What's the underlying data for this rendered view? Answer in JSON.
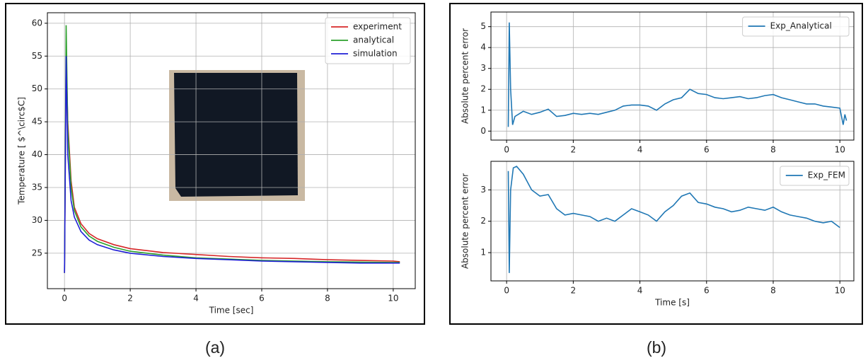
{
  "chart_data": [
    {
      "type": "line",
      "xlabel": "Time [sec]",
      "ylabel": "Temperature [ $^\\circ$C]",
      "x": [
        0,
        0.05,
        0.1,
        0.2,
        0.3,
        0.5,
        0.75,
        1,
        1.5,
        2,
        3,
        4,
        5,
        6,
        7,
        8,
        9,
        10,
        10.2
      ],
      "series": [
        {
          "name": "experiment",
          "color": "#d62728",
          "values": [
            22,
            55,
            45,
            36,
            32,
            29.5,
            28,
            27.2,
            26.3,
            25.7,
            25.1,
            24.8,
            24.5,
            24.3,
            24.2,
            24.0,
            23.9,
            23.8,
            23.7
          ]
        },
        {
          "name": "analytical",
          "color": "#2ca02c",
          "values": [
            22,
            59.7,
            44,
            35,
            31.5,
            29,
            27.6,
            26.8,
            25.9,
            25.3,
            24.7,
            24.3,
            24.1,
            23.9,
            23.8,
            23.7,
            23.65,
            23.6,
            23.6
          ]
        },
        {
          "name": "simulation",
          "color": "#1f1fd6",
          "values": [
            22,
            55,
            40,
            33,
            30.5,
            28.3,
            27,
            26.3,
            25.5,
            25.0,
            24.5,
            24.2,
            24.0,
            23.8,
            23.7,
            23.6,
            23.5,
            23.5,
            23.5
          ]
        }
      ],
      "xlim": [
        -0.52,
        10.67
      ],
      "xticks": [
        0,
        2,
        4,
        6,
        8,
        10
      ],
      "ylim": [
        19.6,
        61.6
      ],
      "yticks": [
        25,
        30,
        35,
        40,
        45,
        50,
        55,
        60
      ],
      "grid": true,
      "legend": "upper right",
      "caption": "(a)"
    },
    {
      "type": "line",
      "ylabel": "Absolute percent error",
      "x": [
        0.05,
        0.08,
        0.12,
        0.18,
        0.25,
        0.5,
        0.75,
        1.0,
        1.25,
        1.5,
        1.75,
        2.0,
        2.25,
        2.5,
        2.75,
        3.0,
        3.25,
        3.5,
        3.75,
        4.0,
        4.25,
        4.5,
        4.75,
        5.0,
        5.25,
        5.5,
        5.75,
        6.0,
        6.25,
        6.5,
        6.75,
        7.0,
        7.25,
        7.5,
        7.75,
        8.0,
        8.25,
        8.5,
        8.75,
        9.0,
        9.25,
        9.5,
        9.75,
        10.0,
        10.1,
        10.15,
        10.2
      ],
      "series": [
        {
          "name": "Exp_Analytical",
          "color": "#1f77b4",
          "values": [
            0.2,
            5.2,
            2.0,
            0.3,
            0.7,
            0.95,
            0.8,
            0.9,
            1.05,
            0.7,
            0.75,
            0.85,
            0.8,
            0.85,
            0.8,
            0.9,
            1.0,
            1.2,
            1.25,
            1.25,
            1.2,
            1.0,
            1.3,
            1.5,
            1.6,
            2.0,
            1.8,
            1.75,
            1.6,
            1.55,
            1.6,
            1.65,
            1.55,
            1.6,
            1.7,
            1.75,
            1.6,
            1.5,
            1.4,
            1.3,
            1.3,
            1.2,
            1.15,
            1.1,
            0.3,
            0.8,
            0.5
          ]
        }
      ],
      "xlim": [
        -0.47,
        10.42
      ],
      "xticks": [
        0,
        2,
        4,
        6,
        8,
        10
      ],
      "ylim": [
        -0.43,
        5.7
      ],
      "yticks": [
        0,
        1,
        2,
        3,
        4,
        5
      ],
      "grid": true,
      "legend": "upper right",
      "caption": "(b)"
    },
    {
      "type": "line",
      "xlabel": "Time [s]",
      "ylabel": "Absolute percent error",
      "x": [
        0.05,
        0.08,
        0.12,
        0.2,
        0.3,
        0.5,
        0.75,
        1.0,
        1.25,
        1.5,
        1.75,
        2.0,
        2.25,
        2.5,
        2.75,
        3.0,
        3.25,
        3.5,
        3.75,
        4.0,
        4.25,
        4.5,
        4.75,
        5.0,
        5.25,
        5.5,
        5.75,
        6.0,
        6.25,
        6.5,
        6.75,
        7.0,
        7.25,
        7.5,
        7.75,
        8.0,
        8.25,
        8.5,
        8.75,
        9.0,
        9.25,
        9.5,
        9.75,
        10.0
      ],
      "series": [
        {
          "name": "Exp_FEM",
          "color": "#1f77b4",
          "values": [
            3.6,
            0.35,
            3.0,
            3.7,
            3.75,
            3.5,
            3.0,
            2.8,
            2.85,
            2.4,
            2.2,
            2.25,
            2.2,
            2.15,
            2.0,
            2.1,
            2.0,
            2.2,
            2.4,
            2.3,
            2.2,
            2.0,
            2.3,
            2.5,
            2.8,
            2.9,
            2.6,
            2.55,
            2.45,
            2.4,
            2.3,
            2.35,
            2.45,
            2.4,
            2.35,
            2.45,
            2.3,
            2.2,
            2.15,
            2.1,
            2.0,
            1.95,
            2.0,
            1.8
          ]
        }
      ],
      "xlim": [
        -0.47,
        10.42
      ],
      "xticks": [
        0,
        2,
        4,
        6,
        8,
        10
      ],
      "ylim": [
        0.1,
        3.91
      ],
      "yticks": [
        1,
        2,
        3
      ],
      "grid": true,
      "legend": "upper right"
    }
  ]
}
